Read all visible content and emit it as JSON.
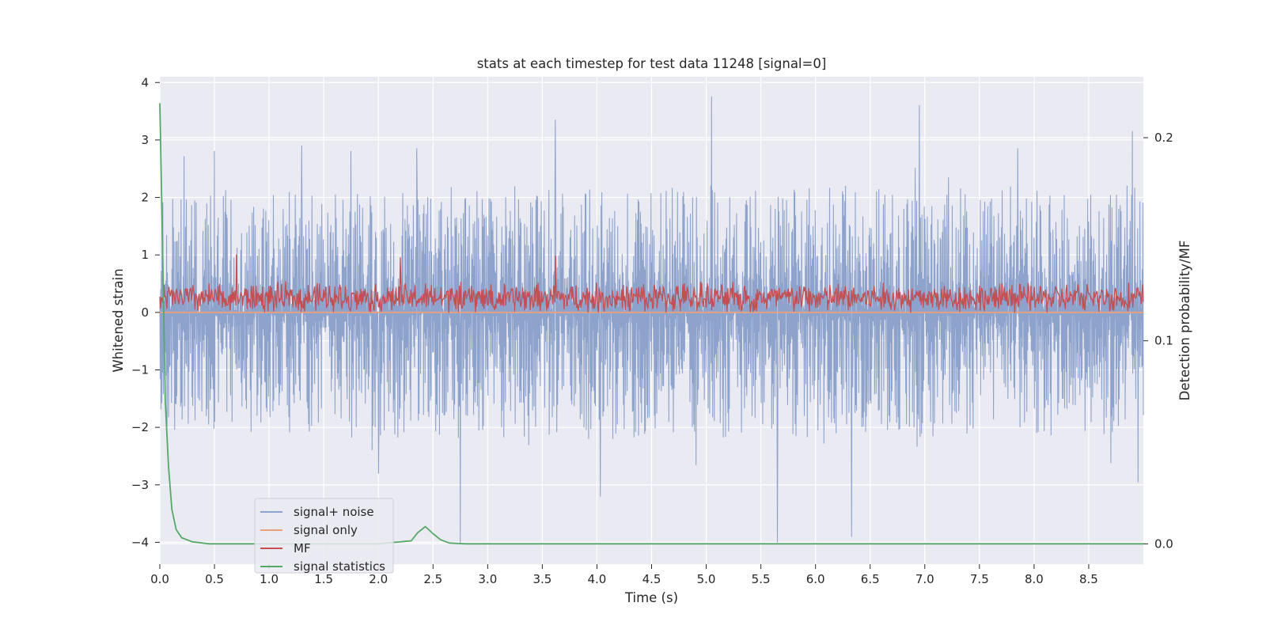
{
  "chart_data": {
    "type": "line",
    "title": "stats at each timestep for test data 11248 [signal=0]",
    "xlabel": "Time (s)",
    "ylabel": "Whitened strain",
    "y2label": "Detection probability/MF",
    "xlim": [
      0.0,
      9.0
    ],
    "ylim": [
      -4.38,
      4.1
    ],
    "y2lim": [
      -0.01,
      0.23
    ],
    "xticks": [
      0.0,
      0.5,
      1.0,
      1.5,
      2.0,
      2.5,
      3.0,
      3.5,
      4.0,
      4.5,
      5.0,
      5.5,
      6.0,
      6.5,
      7.0,
      7.5,
      8.0,
      8.5
    ],
    "xtick_labels": [
      "0.0",
      "0.5",
      "1.0",
      "1.5",
      "2.0",
      "2.5",
      "3.0",
      "3.5",
      "4.0",
      "4.5",
      "5.0",
      "5.5",
      "6.0",
      "6.5",
      "7.0",
      "7.5",
      "8.0",
      "8.5"
    ],
    "yticks": [
      4,
      3,
      2,
      1,
      0,
      -1,
      -2,
      -3,
      -4
    ],
    "ytick_labels": [
      "4",
      "3",
      "2",
      "1",
      "0",
      "−1",
      "−2",
      "−3",
      "−4"
    ],
    "y2ticks": [
      0.2,
      0.1,
      0.0
    ],
    "y2tick_labels": [
      "0.2",
      "0.1",
      "0.0"
    ],
    "grid": true,
    "legend_position": "lower-left",
    "series": [
      {
        "name": "signal+ noise",
        "axis": "left",
        "color": "#8ea3cc",
        "kind": "noise",
        "envelope_upper": 2.2,
        "envelope_lower": -2.1,
        "spikes": [
          {
            "x": 0.5,
            "y": 2.8
          },
          {
            "x": 1.3,
            "y": 2.9
          },
          {
            "x": 1.75,
            "y": 2.8
          },
          {
            "x": 2.35,
            "y": 2.85
          },
          {
            "x": 3.62,
            "y": 3.35
          },
          {
            "x": 5.05,
            "y": 3.75
          },
          {
            "x": 6.95,
            "y": 3.6
          },
          {
            "x": 8.9,
            "y": 3.15
          },
          {
            "x": 7.85,
            "y": 2.85
          },
          {
            "x": 2.75,
            "y": -4.0
          },
          {
            "x": 4.03,
            "y": -3.2
          },
          {
            "x": 5.65,
            "y": -4.0
          },
          {
            "x": 6.33,
            "y": -3.9
          },
          {
            "x": 8.95,
            "y": -2.95
          },
          {
            "x": 2.0,
            "y": -2.8
          }
        ]
      },
      {
        "name": "signal only",
        "axis": "left",
        "color": "#e8a17e",
        "x": [
          0.0,
          9.0
        ],
        "y": [
          0.0,
          0.0
        ]
      },
      {
        "name": "MF",
        "axis": "left",
        "color": "#c44e52",
        "kind": "noise",
        "baseline": 0.25,
        "envelope_upper": 0.55,
        "envelope_lower": 0.0,
        "spikes": [
          {
            "x": 0.7,
            "y": 1.0
          },
          {
            "x": 2.2,
            "y": 0.95
          },
          {
            "x": 3.62,
            "y": 0.98
          }
        ]
      },
      {
        "name": "signal statistics",
        "axis": "right",
        "color": "#55a868",
        "x": [
          0.0,
          0.02,
          0.05,
          0.08,
          0.11,
          0.15,
          0.2,
          0.3,
          0.45,
          0.6,
          1.0,
          1.5,
          2.0,
          2.3,
          2.36,
          2.43,
          2.5,
          2.57,
          2.65,
          2.8,
          3.0,
          4.0,
          5.0,
          6.0,
          7.0,
          8.0,
          9.0
        ],
        "y": [
          0.217,
          0.16,
          0.07,
          0.038,
          0.017,
          0.007,
          0.003,
          0.001,
          0.0,
          0.0,
          0.0,
          0.0,
          0.0,
          0.0015,
          0.0055,
          0.0085,
          0.005,
          0.002,
          0.0004,
          0.0,
          0.0,
          0.0,
          0.0,
          0.0,
          0.0,
          0.0,
          0.0
        ]
      }
    ]
  }
}
